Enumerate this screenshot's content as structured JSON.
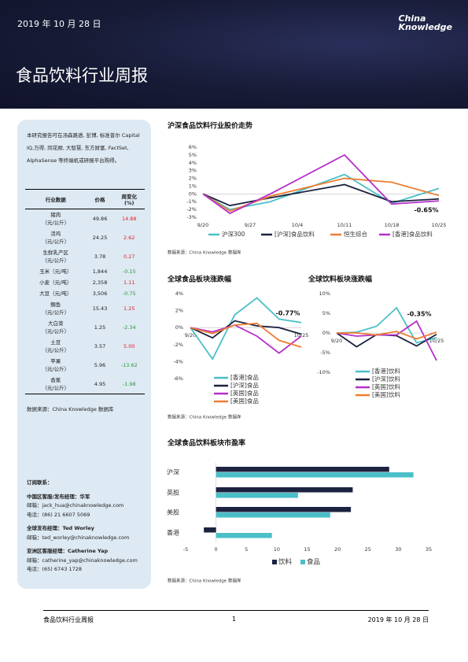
{
  "header": {
    "date": "2019 年 10 月 28 日",
    "logo": [
      "China",
      "Knowledge"
    ],
    "title": "食品饮料行业周报"
  },
  "sidebar": {
    "intro": "本研究报告可在汤森路透, 彭博, 标准普尔 Capital IQ,万得, 同花顺, 大智慧, 东方财富, FactSet, AlphaSense 等终端机或研报平台购得。",
    "table": {
      "header": [
        "行业数据",
        "价格",
        "周变化\n(%)"
      ],
      "rows": [
        [
          "猪肉\n（元/公斤）",
          "49.86",
          "14.88"
        ],
        [
          "活鸡\n（元/公斤）",
          "24.25",
          "2.62"
        ],
        [
          "生鲜乳产区\n（元/公斤）",
          "3.78",
          "0.27"
        ],
        [
          "玉米（元/吨）",
          "1,844",
          "-0.15"
        ],
        [
          "小麦（元/吨）",
          "2,358",
          "1.11"
        ],
        [
          "大豆（元/吨）",
          "3,506",
          "-0.75"
        ],
        [
          "鲷鱼\n（元/公斤）",
          "15.43",
          "1.25"
        ],
        [
          "大白菜\n（元/公斤）",
          "1.25",
          "-2.34"
        ],
        [
          "土豆\n（元/公斤）",
          "3.57",
          "5.00"
        ],
        [
          "苹果\n（元/公斤）",
          "5.96",
          "-13.62"
        ],
        [
          "香蕉\n（元/公斤）",
          "4.95",
          "-1.98"
        ]
      ]
    },
    "source": "数据来源：China Knowledge 数据库",
    "contacts": [
      "订阅联系：",
      "中国区客服/发布经理：华军",
      "邮箱：jack_hua@chinaknowledge.com",
      "电话：(86) 21 6607 5069",
      "全球发布经理：Ted Worley",
      "邮箱：ted_worley@chinaknowledge.com",
      "亚洲区客服经理：Catherine Yap",
      "邮箱：catherine_yap@chinaknowledge.com",
      "电话：(65) 6743 1728"
    ]
  },
  "chart_data": [
    {
      "type": "line",
      "title": "沪深食品饮料行业股价走势",
      "source": "数据来源：China Knowledge 数据库",
      "x": [
        0,
        4,
        10,
        21,
        28,
        35
      ],
      "xlim": [
        0,
        35
      ],
      "xticks": [
        {
          "value": 0,
          "label": "9/20"
        },
        {
          "value": 7,
          "label": "9/27"
        },
        {
          "value": 14,
          "label": "10/4"
        },
        {
          "value": 21,
          "label": "10/11"
        },
        {
          "value": 28,
          "label": "10/18"
        },
        {
          "value": 35,
          "label": "10/25"
        }
      ],
      "ylim": [
        -3,
        6
      ],
      "yticks": [
        {
          "value": 6,
          "label": "6%"
        },
        {
          "value": 5,
          "label": "5%"
        },
        {
          "value": 4,
          "label": "4%"
        },
        {
          "value": 3,
          "label": "3%"
        },
        {
          "value": 2,
          "label": "2%"
        },
        {
          "value": 1,
          "label": "1%"
        },
        {
          "value": 0,
          "label": "0%"
        },
        {
          "value": -1,
          "label": "-1%"
        },
        {
          "value": -2,
          "label": "-2%"
        },
        {
          "value": -3,
          "label": "-3%"
        }
      ],
      "series": [
        {
          "name": "沪深300",
          "color": "#4bbfc8",
          "values": [
            0,
            -2.0,
            -1.0,
            2.5,
            -1.2,
            0.7
          ]
        },
        {
          "name": "[沪深]食品饮料",
          "color": "#1c2340",
          "values": [
            0,
            -1.5,
            -0.5,
            1.2,
            -1.0,
            -0.65
          ]
        },
        {
          "name": "恒生综合",
          "color": "#ee7d31",
          "values": [
            0,
            -2.2,
            -0.3,
            2.0,
            1.5,
            -0.2
          ]
        },
        {
          "name": "[香港]食品饮料",
          "color": "#b52fc9",
          "values": [
            0,
            -2.5,
            0,
            5.0,
            -1.3,
            -0.9
          ]
        }
      ],
      "annotation": "-0.65%"
    },
    {
      "type": "line",
      "title": "全球食品板块涨跌幅",
      "source": "数据来源：China Knowledge 数据库",
      "categories": [
        "9/20",
        null,
        null,
        null,
        null,
        "10/25"
      ],
      "ylim": [
        -6,
        4
      ],
      "yticks": [
        {
          "value": 4,
          "label": "4%"
        },
        {
          "value": 2,
          "label": "2%"
        },
        {
          "value": 0,
          "label": "0%"
        },
        {
          "value": -2,
          "label": "-2%"
        },
        {
          "value": -4,
          "label": "-4%"
        },
        {
          "value": -6,
          "label": "-6%"
        }
      ],
      "series": [
        {
          "name": "[香港]食品",
          "color": "#4bbfc8",
          "values": [
            0,
            -3.7,
            1.5,
            3.5,
            1.0,
            0.6
          ]
        },
        {
          "name": "[沪深]食品",
          "color": "#1c2340",
          "values": [
            0,
            -1.2,
            0.8,
            0.2,
            0,
            -0.77
          ]
        },
        {
          "name": "[英国]食品",
          "color": "#b52fc9",
          "values": [
            0,
            -0.5,
            0.3,
            -1.0,
            -3.0,
            -1.0
          ]
        },
        {
          "name": "[美国]食品",
          "color": "#ee7d31",
          "values": [
            0,
            -0.7,
            0.3,
            0.5,
            -1.5,
            -2.3
          ]
        }
      ],
      "annotation": "-0.77%"
    },
    {
      "type": "line",
      "title": "全球饮料板块涨跌幅",
      "categories": [
        "9/20",
        null,
        null,
        null,
        null,
        "10/25"
      ],
      "ylim": [
        -10,
        10
      ],
      "yticks": [
        {
          "value": 10,
          "label": "10%"
        },
        {
          "value": 5,
          "label": "5%"
        },
        {
          "value": 0,
          "label": "0%"
        },
        {
          "value": -5,
          "label": "-5%"
        },
        {
          "value": -10,
          "label": "-10%"
        }
      ],
      "series": [
        {
          "name": "[香港]饮料",
          "color": "#4bbfc8",
          "values": [
            0,
            0.2,
            1.7,
            6.4,
            -2.5,
            -1.2
          ]
        },
        {
          "name": "[沪深]饮料",
          "color": "#1c2340",
          "values": [
            0,
            -3.5,
            -0.4,
            -0.7,
            -3.3,
            -0.35
          ]
        },
        {
          "name": "[英国]饮料",
          "color": "#b52fc9",
          "values": [
            0,
            -0.8,
            -0.5,
            -0.5,
            3.0,
            -7.0
          ]
        },
        {
          "name": "[美国]饮料",
          "color": "#ee7d31",
          "values": [
            0,
            0,
            -0.5,
            0.4,
            -1.5,
            0.2
          ]
        }
      ],
      "annotation": "-0.35%"
    },
    {
      "type": "hbar",
      "title": "全球食品饮料板块市盈率",
      "source": "数据来源：China Knowledge 数据库",
      "categories": [
        "沪深",
        "英股",
        "美股",
        "香港"
      ],
      "xlim": [
        -5,
        35
      ],
      "xticks": [
        -5,
        0,
        5,
        10,
        15,
        20,
        25,
        30,
        35
      ],
      "series": [
        {
          "name": "饮料",
          "color": "#1c2340",
          "values": [
            28.5,
            22.5,
            22.2,
            -2.0
          ]
        },
        {
          "name": "食品",
          "color": "#4bbfc8",
          "values": [
            32.5,
            13.5,
            18.8,
            9.2
          ]
        }
      ]
    }
  ],
  "footer": {
    "title": "食品饮料行业周报",
    "page": "1",
    "date": "2019 年 10 月 28 日"
  }
}
